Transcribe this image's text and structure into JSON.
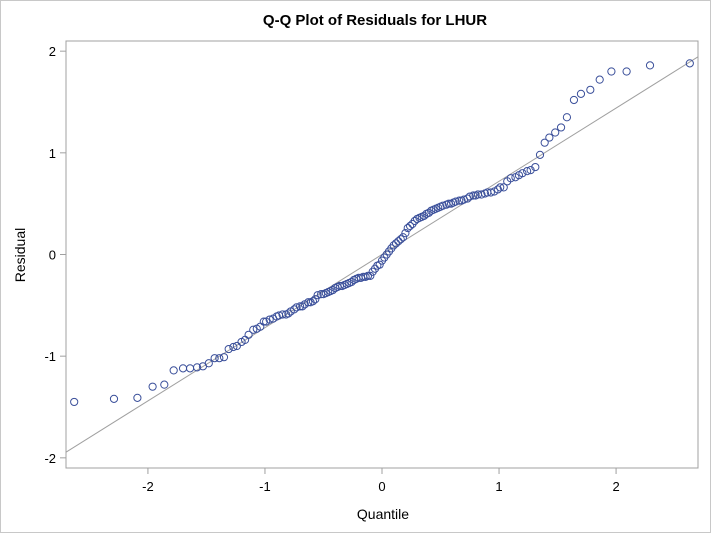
{
  "chart_data": {
    "type": "scatter",
    "title": "Q-Q Plot of Residuals for LHUR",
    "xlabel": "Quantile",
    "ylabel": "Residual",
    "xlim": [
      -2.7,
      2.7
    ],
    "ylim": [
      -2.1,
      2.1
    ],
    "xticks": [
      -2,
      -1,
      0,
      1,
      2
    ],
    "yticks": [
      -2,
      -1,
      0,
      1,
      2
    ],
    "xtick_labels": [
      "-2",
      "-1",
      "0",
      "1",
      "2"
    ],
    "ytick_labels": [
      "-2",
      "-1",
      "0",
      "1",
      "2"
    ],
    "grid": false,
    "reference_line": {
      "intercept": 0.0,
      "slope": 0.72
    },
    "marker_color": "#3a4f9a",
    "line_color": "#a0a0a0",
    "frame_color": "#a0a0a0",
    "series": [
      {
        "marker": "open-circle",
        "x": [
          -2.63,
          -2.29,
          -2.09,
          -1.96,
          -1.86,
          -1.78,
          -1.7,
          -1.64,
          -1.58,
          -1.53,
          -1.48,
          -1.43,
          -1.39,
          -1.35,
          -1.31,
          -1.27,
          -1.24,
          -1.2,
          -1.17,
          -1.14,
          -1.1,
          -1.07,
          -1.04,
          -1.01,
          -0.99,
          -0.96,
          -0.93,
          -0.9,
          -0.88,
          -0.85,
          -0.82,
          -0.8,
          -0.78,
          -0.75,
          -0.73,
          -0.7,
          -0.68,
          -0.66,
          -0.63,
          -0.61,
          -0.59,
          -0.57,
          -0.55,
          -0.52,
          -0.5,
          -0.48,
          -0.46,
          -0.44,
          -0.42,
          -0.4,
          -0.38,
          -0.36,
          -0.34,
          -0.32,
          -0.3,
          -0.28,
          -0.26,
          -0.24,
          -0.22,
          -0.2,
          -0.18,
          -0.16,
          -0.14,
          -0.12,
          -0.1,
          -0.08,
          -0.06,
          -0.04,
          -0.02,
          0.0,
          0.02,
          0.04,
          0.06,
          0.08,
          0.1,
          0.12,
          0.14,
          0.16,
          0.18,
          0.2,
          0.22,
          0.24,
          0.26,
          0.28,
          0.3,
          0.32,
          0.34,
          0.36,
          0.38,
          0.4,
          0.42,
          0.44,
          0.46,
          0.48,
          0.5,
          0.52,
          0.55,
          0.57,
          0.59,
          0.61,
          0.63,
          0.66,
          0.68,
          0.7,
          0.73,
          0.75,
          0.78,
          0.8,
          0.82,
          0.85,
          0.88,
          0.9,
          0.93,
          0.96,
          0.99,
          1.01,
          1.04,
          1.07,
          1.1,
          1.14,
          1.17,
          1.2,
          1.24,
          1.27,
          1.31,
          1.35,
          1.39,
          1.43,
          1.48,
          1.53,
          1.58,
          1.64,
          1.7,
          1.78,
          1.86,
          1.96,
          2.09,
          2.29,
          2.63
        ],
        "y": [
          -1.45,
          -1.42,
          -1.41,
          -1.3,
          -1.28,
          -1.14,
          -1.12,
          -1.12,
          -1.11,
          -1.1,
          -1.07,
          -1.02,
          -1.02,
          -1.01,
          -0.93,
          -0.91,
          -0.9,
          -0.86,
          -0.84,
          -0.79,
          -0.74,
          -0.73,
          -0.71,
          -0.66,
          -0.66,
          -0.64,
          -0.63,
          -0.61,
          -0.6,
          -0.59,
          -0.59,
          -0.58,
          -0.56,
          -0.54,
          -0.52,
          -0.51,
          -0.51,
          -0.49,
          -0.47,
          -0.47,
          -0.46,
          -0.44,
          -0.4,
          -0.39,
          -0.39,
          -0.38,
          -0.37,
          -0.36,
          -0.35,
          -0.33,
          -0.32,
          -0.31,
          -0.31,
          -0.3,
          -0.29,
          -0.28,
          -0.27,
          -0.25,
          -0.24,
          -0.23,
          -0.23,
          -0.22,
          -0.22,
          -0.21,
          -0.21,
          -0.17,
          -0.14,
          -0.11,
          -0.1,
          -0.06,
          -0.03,
          0.0,
          0.03,
          0.06,
          0.09,
          0.11,
          0.13,
          0.15,
          0.17,
          0.21,
          0.26,
          0.28,
          0.3,
          0.33,
          0.35,
          0.36,
          0.37,
          0.38,
          0.4,
          0.41,
          0.43,
          0.44,
          0.45,
          0.46,
          0.47,
          0.48,
          0.49,
          0.5,
          0.5,
          0.51,
          0.52,
          0.53,
          0.53,
          0.54,
          0.55,
          0.57,
          0.58,
          0.58,
          0.59,
          0.59,
          0.6,
          0.61,
          0.61,
          0.62,
          0.64,
          0.66,
          0.66,
          0.72,
          0.75,
          0.76,
          0.78,
          0.8,
          0.82,
          0.83,
          0.86,
          0.98,
          1.1,
          1.15,
          1.2,
          1.25,
          1.35,
          1.52,
          1.58,
          1.62,
          1.72,
          1.8,
          1.8,
          1.86,
          1.88
        ]
      }
    ]
  }
}
